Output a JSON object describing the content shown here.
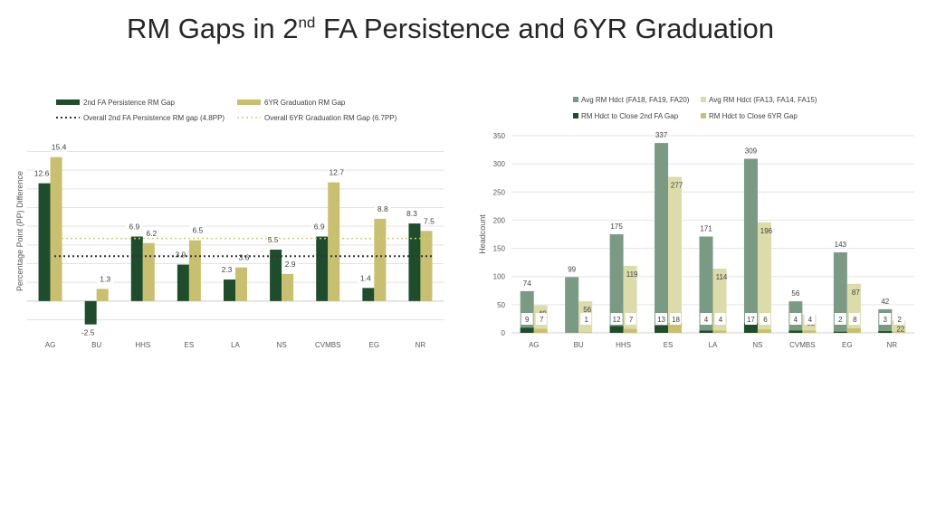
{
  "slide": {
    "title_pre": "RM Gaps in 2",
    "title_sup": "nd",
    "title_post": " FA Persistence and 6YR Graduation"
  },
  "colors": {
    "dark_green": "#1e4d2b",
    "khaki": "#c8c06e",
    "slate_green": "#7a9a84",
    "pale_khaki": "#dcdcaa",
    "dotted_dark": "#333333",
    "dotted_khaki": "#c8d07a"
  },
  "chart_data": [
    {
      "type": "bar",
      "ylabel": "Percentage Point (PP) Difference",
      "ylim": [
        -3.5,
        17.5
      ],
      "categories": [
        "AG",
        "BU",
        "HHS",
        "ES",
        "LA",
        "NS",
        "CVMBS",
        "EG",
        "NR"
      ],
      "series": [
        {
          "name": "2nd FA Persistence RM Gap",
          "values": [
            12.6,
            -2.5,
            6.9,
            3.9,
            2.3,
            5.5,
            6.9,
            1.4,
            8.3
          ]
        },
        {
          "name": "6YR Graduation RM Gap",
          "values": [
            15.4,
            1.3,
            6.2,
            6.5,
            3.6,
            2.9,
            12.7,
            8.8,
            7.5
          ]
        }
      ],
      "reference_lines": [
        {
          "name": "Overall 2nd FA Persistence RM gap  (4.8PP)",
          "value": 4.8
        },
        {
          "name": "Overall 6YR Graduation RM Gap (6.7PP)",
          "value": 6.7
        }
      ],
      "legend": "top",
      "grid": true
    },
    {
      "type": "bar",
      "ylabel": "Headcount",
      "ylim": [
        0,
        350
      ],
      "yticks": [
        0,
        50,
        100,
        150,
        200,
        250,
        300,
        350
      ],
      "categories": [
        "AG",
        "BU",
        "HHS",
        "ES",
        "LA",
        "NS",
        "CVMBS",
        "EG",
        "NR"
      ],
      "series": [
        {
          "name": "Avg RM Hdct (FA18, FA19, FA20)",
          "values": [
            74,
            99,
            175,
            337,
            171,
            309,
            56,
            143,
            42
          ]
        },
        {
          "name": "Avg RM Hdct (FA13, FA14, FA15)",
          "values": [
            49,
            56,
            119,
            277,
            114,
            196,
            32,
            87,
            22
          ]
        },
        {
          "name": "RM Hdct to Close 2nd FA Gap",
          "values": [
            9,
            null,
            12,
            13,
            4,
            17,
            4,
            2,
            3
          ]
        },
        {
          "name": "RM Hdct to Close 6YR Gap",
          "values": [
            7,
            1,
            7,
            18,
            4,
            6,
            4,
            8,
            2
          ]
        }
      ],
      "legend": "top",
      "grid": true
    }
  ]
}
